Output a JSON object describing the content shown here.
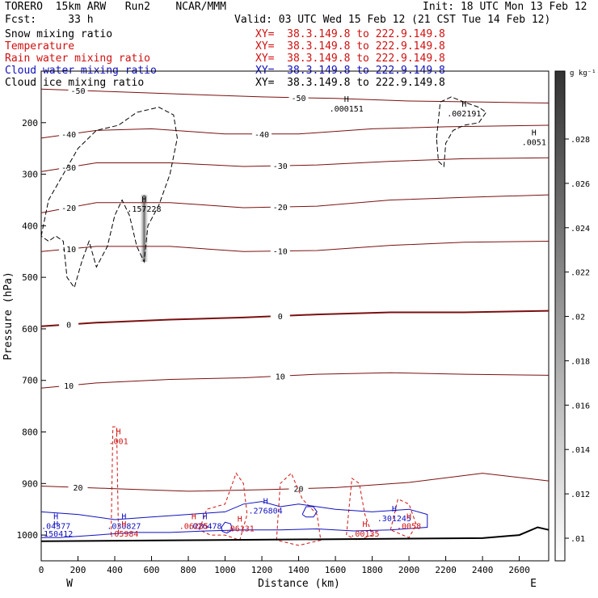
{
  "header": {
    "model": "TORERO  15km ARW   Run2    NCAR/MMM",
    "init": "Init: 18 UTC Mon 13 Feb 12",
    "fcst": "Fcst:     33 h",
    "valid": "Valid: 03 UTC Wed 15 Feb 12 (21 CST Tue 14 Feb 12)"
  },
  "legend": [
    {
      "name": "Snow mixing ratio",
      "xy": "XY=  38.3.149.8 to 222.9.149.8",
      "color": "#000000"
    },
    {
      "name": "Temperature",
      "xy": "XY=  38.3.149.8 to 222.9.149.8",
      "color": "#d01010"
    },
    {
      "name": "Rain water mixing ratio",
      "xy": "XY=  38.3.149.8 to 222.9.149.8",
      "color": "#d01010"
    },
    {
      "name": "Cloud water mixing ratio",
      "xy": "XY=  38.3.149.8 to 222.9.149.8",
      "color": "#1010c0"
    },
    {
      "name": "Cloud ice mixing ratio",
      "xy": "XY=  38.3.149.8 to 222.9.149.8",
      "color": "#000000"
    }
  ],
  "chart_data": {
    "type": "line",
    "xlabel": "Distance (km)",
    "ylabel": "Pressure (hPa)",
    "xlim": [
      0,
      2760
    ],
    "ylim": [
      1050,
      100
    ],
    "x_ticks": [
      0,
      200,
      400,
      600,
      800,
      1000,
      1200,
      1400,
      1600,
      1800,
      2000,
      2200,
      2400,
      2600
    ],
    "y_ticks": [
      200,
      300,
      400,
      500,
      600,
      700,
      800,
      900,
      1000
    ],
    "left_label": "W",
    "right_label": "E",
    "colorbar": {
      "unit": "g kg⁻¹",
      "ticks": [
        ".01",
        ".012",
        ".014",
        ".016",
        ".018",
        ".02",
        ".022",
        ".024",
        ".026",
        ".028"
      ]
    },
    "temperature_contours": [
      {
        "label": "-50",
        "points": [
          [
            0,
            135
          ],
          [
            400,
            140
          ],
          [
            800,
            145
          ],
          [
            1200,
            150
          ],
          [
            1600,
            153
          ],
          [
            2000,
            158
          ],
          [
            2400,
            160
          ],
          [
            2760,
            162
          ]
        ]
      },
      {
        "label": "-40",
        "points": [
          [
            0,
            230
          ],
          [
            300,
            215
          ],
          [
            600,
            212
          ],
          [
            1000,
            222
          ],
          [
            1400,
            222
          ],
          [
            1800,
            212
          ],
          [
            2200,
            208
          ],
          [
            2760,
            205
          ]
        ]
      },
      {
        "label": "-30",
        "points": [
          [
            0,
            295
          ],
          [
            300,
            278
          ],
          [
            700,
            278
          ],
          [
            1100,
            285
          ],
          [
            1500,
            282
          ],
          [
            1900,
            275
          ],
          [
            2300,
            270
          ],
          [
            2760,
            268
          ]
        ]
      },
      {
        "label": "-20",
        "points": [
          [
            0,
            375
          ],
          [
            300,
            355
          ],
          [
            700,
            355
          ],
          [
            1100,
            365
          ],
          [
            1500,
            362
          ],
          [
            1900,
            350
          ],
          [
            2300,
            345
          ],
          [
            2760,
            340
          ]
        ]
      },
      {
        "label": "-10",
        "points": [
          [
            0,
            450
          ],
          [
            300,
            440
          ],
          [
            700,
            440
          ],
          [
            1100,
            450
          ],
          [
            1500,
            448
          ],
          [
            1900,
            438
          ],
          [
            2300,
            432
          ],
          [
            2760,
            430
          ]
        ]
      },
      {
        "label": "0",
        "points": [
          [
            0,
            595
          ],
          [
            300,
            588
          ],
          [
            700,
            582
          ],
          [
            1100,
            578
          ],
          [
            1500,
            572
          ],
          [
            1900,
            568
          ],
          [
            2300,
            568
          ],
          [
            2760,
            565
          ]
        ]
      },
      {
        "label": "10",
        "points": [
          [
            0,
            715
          ],
          [
            300,
            705
          ],
          [
            700,
            698
          ],
          [
            1100,
            695
          ],
          [
            1500,
            688
          ],
          [
            1900,
            685
          ],
          [
            2300,
            688
          ],
          [
            2760,
            690
          ]
        ]
      },
      {
        "label": "20",
        "points": [
          [
            0,
            905
          ],
          [
            400,
            910
          ],
          [
            800,
            915
          ],
          [
            1200,
            912
          ],
          [
            1600,
            908
          ],
          [
            2000,
            898
          ],
          [
            2400,
            880
          ],
          [
            2760,
            895
          ]
        ]
      }
    ],
    "snow_max": [
      {
        "label": ".157228",
        "x": 560,
        "p": 370
      },
      {
        "label": ".000151",
        "x": 1660,
        "p": 175
      },
      {
        "label": ".002191",
        "x": 2300,
        "p": 185
      },
      {
        "label": ".0051",
        "x": 2680,
        "p": 240
      }
    ],
    "cloud_water_max": [
      {
        "label": ".04377",
        "x": 80,
        "p": 985
      },
      {
        "label": ".150412",
        "x": 80,
        "p": 1000
      },
      {
        "label": ".030827",
        "x": 450,
        "p": 985
      },
      {
        "label": ".026478",
        "x": 890,
        "p": 985
      },
      {
        "label": ".276804",
        "x": 1220,
        "p": 955
      },
      {
        "label": ".301245",
        "x": 1920,
        "p": 970
      }
    ],
    "rain_max": [
      {
        "label": ".001",
        "x": 420,
        "p": 820
      },
      {
        "label": ".05984",
        "x": 450,
        "p": 1000
      },
      {
        "label": ".06285",
        "x": 830,
        "p": 985
      },
      {
        "label": ".06131",
        "x": 1080,
        "p": 990
      },
      {
        "label": ".00135",
        "x": 1760,
        "p": 1000
      },
      {
        "label": ".0058",
        "x": 2000,
        "p": 985
      }
    ]
  }
}
